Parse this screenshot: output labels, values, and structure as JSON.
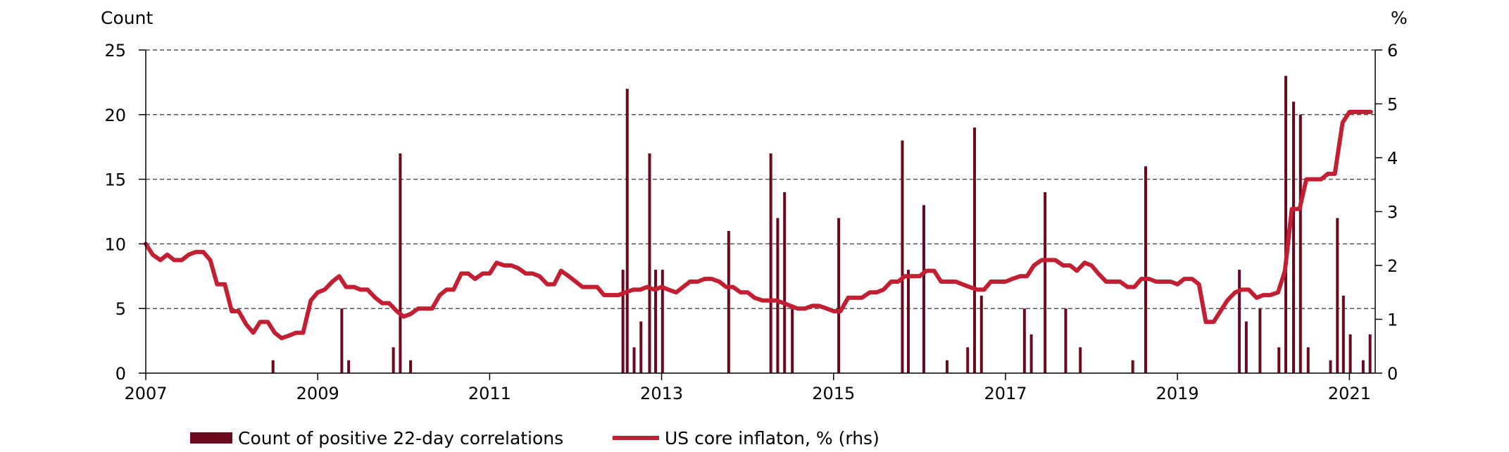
{
  "colors": {
    "bars": "#6b0a1f",
    "line": "#c21f33",
    "grid": "#555555",
    "axis": "#000000"
  },
  "chart_data": {
    "type": "bar",
    "y_left_label": "Count",
    "y_right_label": "%",
    "ylim_left": [
      0,
      25
    ],
    "ylim_right": [
      0,
      6
    ],
    "y_left_ticks": [
      "0",
      "5",
      "10",
      "15",
      "20",
      "25"
    ],
    "y_right_ticks": [
      "0",
      "1",
      "2",
      "3",
      "4",
      "5",
      "6"
    ],
    "x_ticks": [
      "2007",
      "2009",
      "2011",
      "2013",
      "2015",
      "2017",
      "2019",
      "2021"
    ],
    "xlim": [
      2007.0,
      2021.3
    ],
    "grid": "horizontal dashed",
    "legend_position": "bottom",
    "series": [
      {
        "name": "Count of  positive 22-day correlations",
        "type": "bar",
        "axis": "left",
        "x": [
          2008.48,
          2009.28,
          2009.36,
          2009.88,
          2009.96,
          2010.08,
          2012.55,
          2012.6,
          2012.68,
          2012.76,
          2012.86,
          2012.93,
          2013.01,
          2013.78,
          2014.27,
          2014.35,
          2014.43,
          2014.52,
          2015.06,
          2015.8,
          2015.87,
          2016.05,
          2016.32,
          2016.56,
          2016.64,
          2016.72,
          2017.22,
          2017.3,
          2017.46,
          2017.7,
          2017.87,
          2018.48,
          2018.63,
          2019.72,
          2019.8,
          2019.96,
          2020.18,
          2020.26,
          2020.35,
          2020.43,
          2020.52,
          2020.78,
          2020.86,
          2020.93,
          2021.01,
          2021.16,
          2021.24
        ],
        "values": [
          1,
          5,
          1,
          2,
          17,
          1,
          8,
          22,
          2,
          4,
          17,
          8,
          8,
          11,
          17,
          12,
          14,
          5,
          12,
          18,
          8,
          13,
          1,
          2,
          19,
          6,
          5,
          3,
          14,
          5,
          2,
          1,
          16,
          8,
          4,
          5,
          2,
          23,
          21,
          20,
          2,
          1,
          12,
          6,
          3,
          1,
          3
        ]
      },
      {
        "name": "US core inflaton, % (rhs)",
        "type": "line",
        "axis": "right",
        "x": [
          2007.0,
          2007.08,
          2007.17,
          2007.25,
          2007.33,
          2007.42,
          2007.5,
          2007.58,
          2007.67,
          2007.75,
          2007.83,
          2007.92,
          2008.0,
          2008.08,
          2008.17,
          2008.25,
          2008.33,
          2008.42,
          2008.5,
          2008.58,
          2008.67,
          2008.75,
          2008.83,
          2008.92,
          2009.0,
          2009.08,
          2009.17,
          2009.25,
          2009.33,
          2009.42,
          2009.5,
          2009.58,
          2009.67,
          2009.75,
          2009.83,
          2009.92,
          2010.0,
          2010.08,
          2010.17,
          2010.25,
          2010.33,
          2010.42,
          2010.5,
          2010.58,
          2010.67,
          2010.75,
          2010.83,
          2010.92,
          2011.0,
          2011.08,
          2011.17,
          2011.25,
          2011.33,
          2011.42,
          2011.5,
          2011.58,
          2011.67,
          2011.75,
          2011.83,
          2011.92,
          2012.0,
          2012.08,
          2012.17,
          2012.25,
          2012.33,
          2012.42,
          2012.5,
          2012.58,
          2012.67,
          2012.75,
          2012.83,
          2012.92,
          2013.0,
          2013.08,
          2013.17,
          2013.25,
          2013.33,
          2013.42,
          2013.5,
          2013.58,
          2013.67,
          2013.75,
          2013.83,
          2013.92,
          2014.0,
          2014.08,
          2014.17,
          2014.25,
          2014.33,
          2014.42,
          2014.5,
          2014.58,
          2014.67,
          2014.75,
          2014.83,
          2014.92,
          2015.0,
          2015.08,
          2015.17,
          2015.25,
          2015.33,
          2015.42,
          2015.5,
          2015.58,
          2015.67,
          2015.75,
          2015.83,
          2015.92,
          2016.0,
          2016.08,
          2016.17,
          2016.25,
          2016.33,
          2016.42,
          2016.5,
          2016.58,
          2016.67,
          2016.75,
          2016.83,
          2016.92,
          2017.0,
          2017.08,
          2017.17,
          2017.25,
          2017.33,
          2017.42,
          2017.5,
          2017.58,
          2017.67,
          2017.75,
          2017.83,
          2017.92,
          2018.0,
          2018.08,
          2018.17,
          2018.25,
          2018.33,
          2018.42,
          2018.5,
          2018.58,
          2018.67,
          2018.75,
          2018.83,
          2018.92,
          2019.0,
          2019.08,
          2019.17,
          2019.25,
          2019.33,
          2019.42,
          2019.5,
          2019.58,
          2019.67,
          2019.75,
          2019.83,
          2019.92,
          2020.0,
          2020.08,
          2020.17,
          2020.25,
          2020.33,
          2020.42,
          2020.5,
          2020.58,
          2020.67,
          2020.75,
          2020.83,
          2020.92,
          2021.0,
          2021.08,
          2021.17,
          2021.25
        ],
        "values": [
          2.4,
          2.2,
          2.1,
          2.2,
          2.1,
          2.1,
          2.2,
          2.25,
          2.25,
          2.1,
          1.65,
          1.65,
          1.15,
          1.15,
          0.9,
          0.75,
          0.95,
          0.95,
          0.75,
          0.65,
          0.7,
          0.75,
          0.75,
          1.35,
          1.5,
          1.55,
          1.7,
          1.8,
          1.6,
          1.6,
          1.55,
          1.55,
          1.4,
          1.3,
          1.3,
          1.15,
          1.05,
          1.1,
          1.2,
          1.2,
          1.2,
          1.45,
          1.55,
          1.55,
          1.85,
          1.85,
          1.75,
          1.85,
          1.85,
          2.05,
          2.0,
          2.0,
          1.95,
          1.85,
          1.85,
          1.8,
          1.65,
          1.65,
          1.9,
          1.8,
          1.7,
          1.6,
          1.6,
          1.6,
          1.45,
          1.45,
          1.45,
          1.5,
          1.55,
          1.55,
          1.6,
          1.55,
          1.6,
          1.55,
          1.5,
          1.6,
          1.7,
          1.7,
          1.75,
          1.75,
          1.7,
          1.6,
          1.6,
          1.5,
          1.5,
          1.4,
          1.35,
          1.35,
          1.35,
          1.3,
          1.25,
          1.2,
          1.2,
          1.25,
          1.25,
          1.2,
          1.15,
          1.15,
          1.4,
          1.4,
          1.4,
          1.5,
          1.5,
          1.55,
          1.7,
          1.7,
          1.8,
          1.8,
          1.8,
          1.9,
          1.9,
          1.7,
          1.7,
          1.7,
          1.65,
          1.6,
          1.55,
          1.55,
          1.7,
          1.7,
          1.7,
          1.75,
          1.8,
          1.8,
          2.0,
          2.1,
          2.1,
          2.1,
          2.0,
          2.0,
          1.9,
          2.05,
          2.0,
          1.85,
          1.7,
          1.7,
          1.7,
          1.6,
          1.6,
          1.75,
          1.75,
          1.7,
          1.7,
          1.7,
          1.65,
          1.75,
          1.75,
          1.65,
          0.95,
          0.95,
          1.15,
          1.35,
          1.5,
          1.55,
          1.55,
          1.4,
          1.45,
          1.45,
          1.5,
          1.9,
          3.05,
          3.05,
          3.6,
          3.6,
          3.6,
          3.7,
          3.7,
          4.65,
          4.85,
          4.85,
          4.85,
          4.85
        ]
      }
    ]
  }
}
